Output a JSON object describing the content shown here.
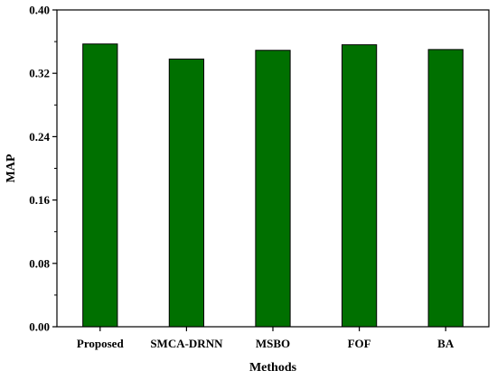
{
  "chart_data": {
    "type": "bar",
    "title": "",
    "xlabel": "Methods",
    "ylabel": "MAP",
    "categories": [
      "Proposed",
      "SMCA-DRNN",
      "MSBO",
      "FOF",
      "BA"
    ],
    "values": [
      0.357,
      0.338,
      0.349,
      0.356,
      0.35
    ],
    "ylim": [
      0,
      0.4
    ],
    "yticks": [
      "0.00",
      "0.08",
      "0.16",
      "0.24",
      "0.32",
      "0.40"
    ],
    "grid": false,
    "legend": "none",
    "bar_color": "#007000",
    "bar_edge_color": "#000000"
  }
}
